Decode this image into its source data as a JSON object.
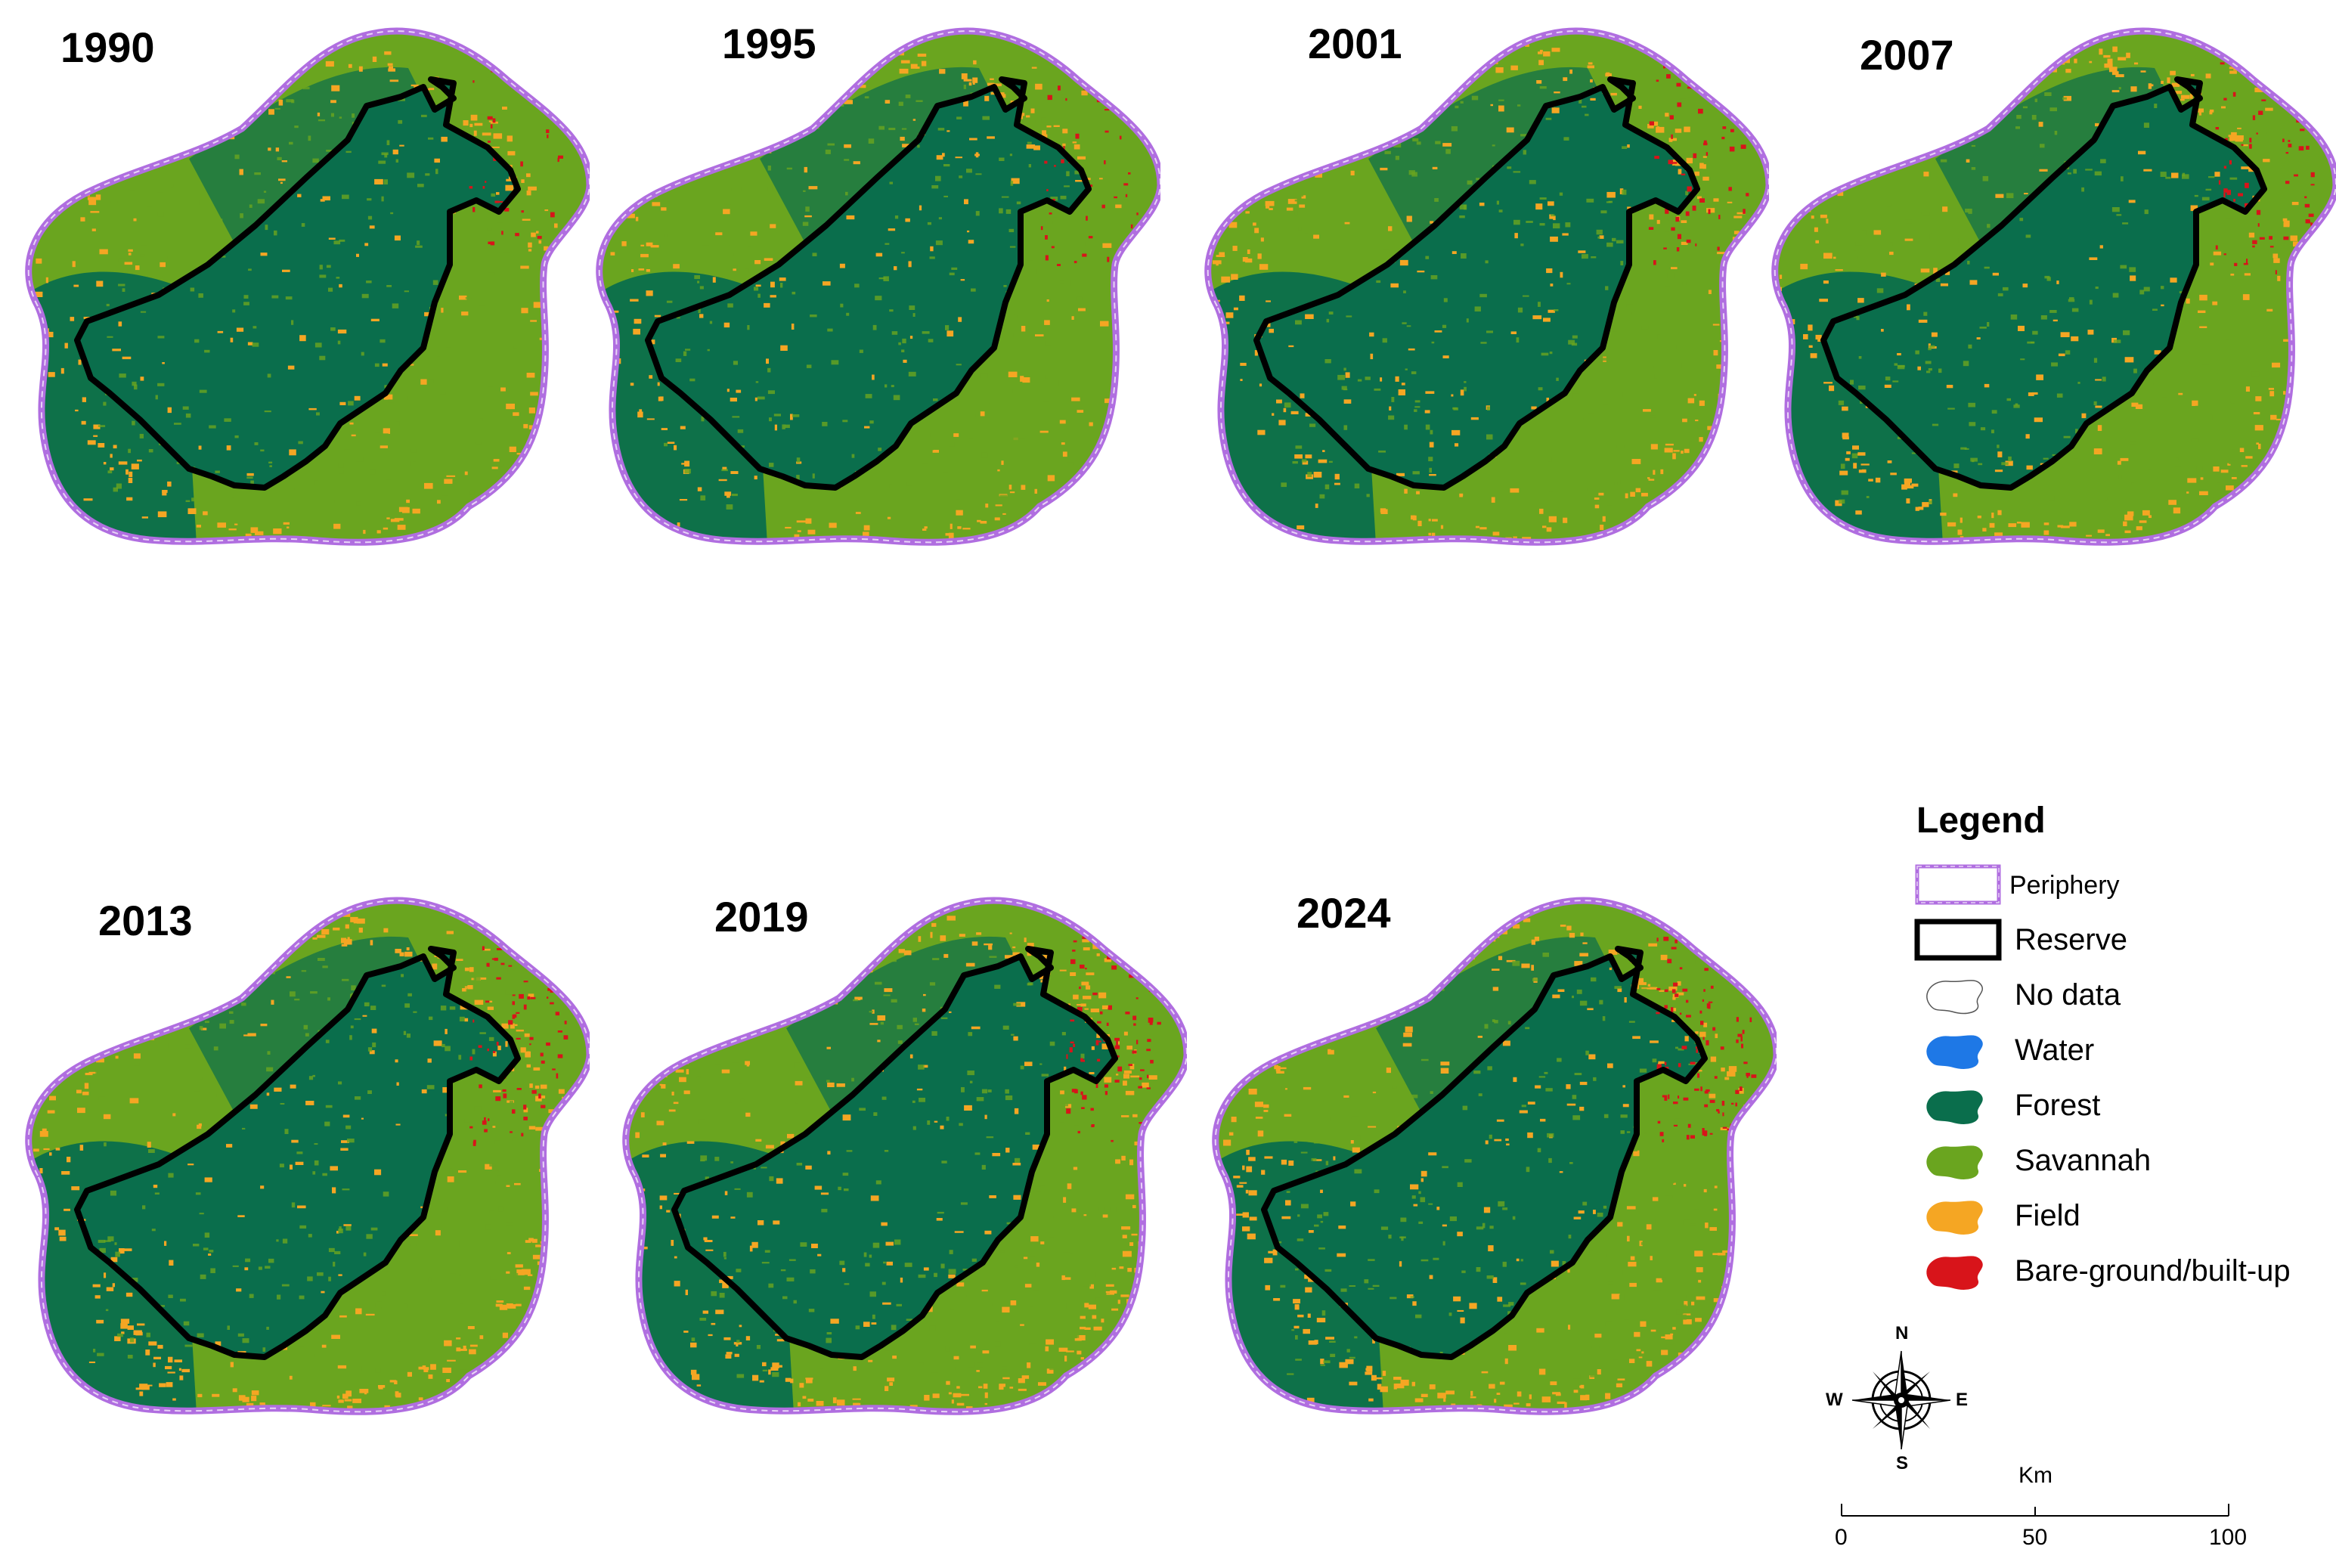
{
  "maps": [
    {
      "year": "1990"
    },
    {
      "year": "1995"
    },
    {
      "year": "2001"
    },
    {
      "year": "2007"
    },
    {
      "year": "2013"
    },
    {
      "year": "2019"
    },
    {
      "year": "2024"
    }
  ],
  "legend": {
    "title": "Legend",
    "items": [
      {
        "label": "Periphery",
        "symbol": "periphery-outline",
        "color": "#b06ee0"
      },
      {
        "label": "Reserve",
        "symbol": "reserve-outline",
        "color": "#000000"
      },
      {
        "label": "No data",
        "symbol": "patch",
        "color": "#ffffff"
      },
      {
        "label": "Water",
        "symbol": "patch",
        "color": "#1e78e6"
      },
      {
        "label": "Forest",
        "symbol": "patch",
        "color": "#0a6e4c"
      },
      {
        "label": "Savannah",
        "symbol": "patch",
        "color": "#6aa51f"
      },
      {
        "label": "Field",
        "symbol": "patch",
        "color": "#f5a623"
      },
      {
        "label": "Bare-ground/built-up",
        "symbol": "patch",
        "color": "#d8141a"
      }
    ]
  },
  "compass": {
    "north": "N",
    "south": "S",
    "east": "E",
    "west": "W"
  },
  "scale": {
    "unit": "Km",
    "ticks": [
      "0",
      "50",
      "100"
    ]
  },
  "colors": {
    "forest": "#0a6e4c",
    "savannah": "#6aa51f",
    "field": "#f5a623",
    "bare": "#d8141a",
    "periphery": "#b06ee0",
    "reserve": "#000000"
  }
}
